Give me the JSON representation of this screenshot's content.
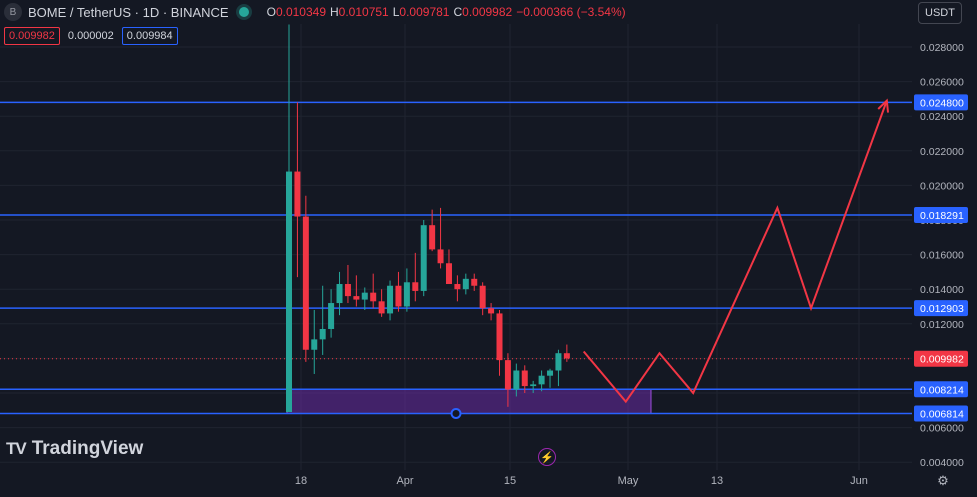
{
  "header": {
    "symbol_icon": "B",
    "title": "BOME / TetherUS · 1D · BINANCE",
    "o_label": "O",
    "o_value": "0.010349",
    "h_label": "H",
    "h_value": "0.010751",
    "l_label": "L",
    "l_value": "0.009781",
    "c_label": "C",
    "c_value": "0.009982",
    "change": "−0.000366 (−3.54%)"
  },
  "row2": {
    "bid": "0.009982",
    "spread": "0.000002",
    "ask": "0.009984"
  },
  "currency_button": "USDT",
  "logo_text": "TradingView",
  "logo_mark": "TV",
  "icons": {
    "symbol": "bome-symbol-icon",
    "live": "market-open-dot-icon",
    "flash": "lightning-icon",
    "settings": "gear-icon"
  },
  "colors": {
    "bg": "#141823",
    "up": "#26a69a",
    "down": "#f23645",
    "hline": "#2962ff",
    "zone": "#7b2fbe",
    "projection": "#f23645",
    "grid": "#1f2430"
  },
  "chart_data": {
    "type": "candlestick",
    "y_axis": {
      "min": 0.004,
      "max": 0.029,
      "ticks": [
        "0.028000",
        "0.026000",
        "0.024000",
        "0.022000",
        "0.020000",
        "0.018000",
        "0.016000",
        "0.014000",
        "0.012000",
        "0.010000",
        "0.008000",
        "0.006000",
        "0.004000"
      ]
    },
    "x_axis": {
      "tick_labels": [
        "18",
        "Apr",
        "15",
        "May",
        "13",
        "Jun"
      ]
    },
    "price_levels": [
      {
        "label": "0.024800",
        "value": 0.0248
      },
      {
        "label": "0.018291",
        "value": 0.018291
      },
      {
        "label": "0.012903",
        "value": 0.012903
      },
      {
        "label": "0.008214",
        "value": 0.008214
      },
      {
        "label": "0.006814",
        "value": 0.006814
      }
    ],
    "current_price": {
      "label": "0.009982",
      "value": 0.009982
    },
    "zone": {
      "from": 0.006814,
      "to": 0.008214
    },
    "candles": [
      {
        "i": 0,
        "o": 0.0069,
        "h": 0.0293,
        "l": 0.0069,
        "c": 0.0208
      },
      {
        "i": 1,
        "o": 0.0208,
        "h": 0.0248,
        "l": 0.0147,
        "c": 0.0182
      },
      {
        "i": 2,
        "o": 0.0182,
        "h": 0.0194,
        "l": 0.0098,
        "c": 0.0105
      },
      {
        "i": 3,
        "o": 0.0105,
        "h": 0.0128,
        "l": 0.0091,
        "c": 0.0111
      },
      {
        "i": 4,
        "o": 0.0111,
        "h": 0.0142,
        "l": 0.0102,
        "c": 0.0117
      },
      {
        "i": 5,
        "o": 0.0117,
        "h": 0.014,
        "l": 0.0112,
        "c": 0.0132
      },
      {
        "i": 6,
        "o": 0.0132,
        "h": 0.015,
        "l": 0.0125,
        "c": 0.0143
      },
      {
        "i": 7,
        "o": 0.0143,
        "h": 0.0154,
        "l": 0.0132,
        "c": 0.0136
      },
      {
        "i": 8,
        "o": 0.0136,
        "h": 0.0148,
        "l": 0.013,
        "c": 0.0134
      },
      {
        "i": 9,
        "o": 0.0134,
        "h": 0.0141,
        "l": 0.0128,
        "c": 0.0138
      },
      {
        "i": 10,
        "o": 0.0138,
        "h": 0.0149,
        "l": 0.0129,
        "c": 0.0133
      },
      {
        "i": 11,
        "o": 0.0133,
        "h": 0.014,
        "l": 0.0124,
        "c": 0.0126
      },
      {
        "i": 12,
        "o": 0.0126,
        "h": 0.0145,
        "l": 0.0122,
        "c": 0.0142
      },
      {
        "i": 13,
        "o": 0.0142,
        "h": 0.015,
        "l": 0.0127,
        "c": 0.013
      },
      {
        "i": 14,
        "o": 0.013,
        "h": 0.0152,
        "l": 0.0127,
        "c": 0.0144
      },
      {
        "i": 15,
        "o": 0.0144,
        "h": 0.0161,
        "l": 0.0133,
        "c": 0.0139
      },
      {
        "i": 16,
        "o": 0.0139,
        "h": 0.018,
        "l": 0.0136,
        "c": 0.0177
      },
      {
        "i": 17,
        "o": 0.0177,
        "h": 0.0186,
        "l": 0.0162,
        "c": 0.0163
      },
      {
        "i": 18,
        "o": 0.0163,
        "h": 0.0187,
        "l": 0.0152,
        "c": 0.0155
      },
      {
        "i": 19,
        "o": 0.0155,
        "h": 0.0163,
        "l": 0.0143,
        "c": 0.0143
      },
      {
        "i": 20,
        "o": 0.0143,
        "h": 0.0148,
        "l": 0.0133,
        "c": 0.014
      },
      {
        "i": 21,
        "o": 0.014,
        "h": 0.0149,
        "l": 0.0137,
        "c": 0.0146
      },
      {
        "i": 22,
        "o": 0.0146,
        "h": 0.0149,
        "l": 0.0139,
        "c": 0.0142
      },
      {
        "i": 23,
        "o": 0.0142,
        "h": 0.0144,
        "l": 0.0125,
        "c": 0.0129
      },
      {
        "i": 24,
        "o": 0.0129,
        "h": 0.0132,
        "l": 0.0122,
        "c": 0.0126
      },
      {
        "i": 25,
        "o": 0.0126,
        "h": 0.0128,
        "l": 0.009,
        "c": 0.0099
      },
      {
        "i": 26,
        "o": 0.0099,
        "h": 0.0103,
        "l": 0.0072,
        "c": 0.0082
      },
      {
        "i": 27,
        "o": 0.0082,
        "h": 0.0097,
        "l": 0.0078,
        "c": 0.0093
      },
      {
        "i": 28,
        "o": 0.0093,
        "h": 0.0096,
        "l": 0.008,
        "c": 0.0084
      },
      {
        "i": 29,
        "o": 0.0084,
        "h": 0.0087,
        "l": 0.008,
        "c": 0.0085
      },
      {
        "i": 30,
        "o": 0.0085,
        "h": 0.0093,
        "l": 0.0081,
        "c": 0.009
      },
      {
        "i": 31,
        "o": 0.009,
        "h": 0.0094,
        "l": 0.0083,
        "c": 0.0093
      },
      {
        "i": 32,
        "o": 0.0093,
        "h": 0.0105,
        "l": 0.0084,
        "c": 0.0103
      },
      {
        "i": 33,
        "o": 0.0103,
        "h": 0.0108,
        "l": 0.0098,
        "c": 0.01
      }
    ],
    "projection_path": [
      {
        "i": 35,
        "v": 0.0104
      },
      {
        "i": 40,
        "v": 0.0075
      },
      {
        "i": 44,
        "v": 0.0103
      },
      {
        "i": 48,
        "v": 0.008
      },
      {
        "i": 58,
        "v": 0.0187
      },
      {
        "i": 62,
        "v": 0.0129
      },
      {
        "i": 71,
        "v": 0.0249
      }
    ]
  }
}
